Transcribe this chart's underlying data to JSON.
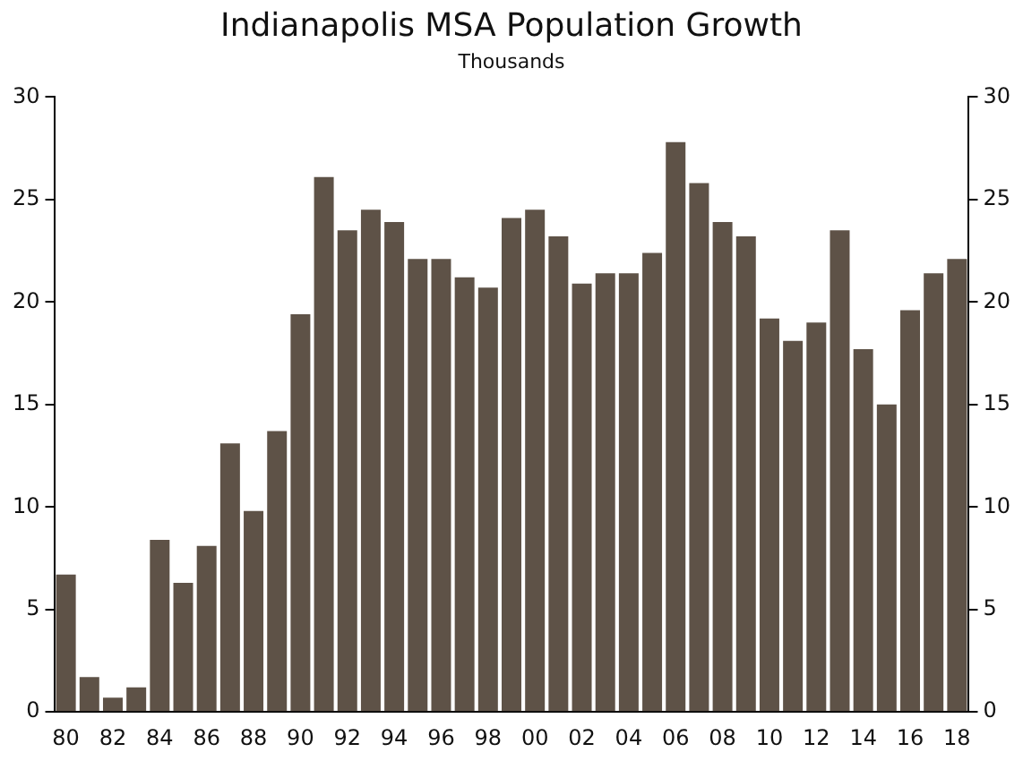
{
  "chart_data": {
    "type": "bar",
    "title": "Indianapolis MSA Population Growth",
    "subtitle": "Thousands",
    "categories": [
      "80",
      null,
      "82",
      null,
      "84",
      null,
      "86",
      null,
      "88",
      null,
      "90",
      null,
      "92",
      null,
      "94",
      null,
      "96",
      null,
      "98",
      null,
      "00",
      null,
      "02",
      null,
      "04",
      null,
      "06",
      null,
      "08",
      null,
      "10",
      null,
      "12",
      null,
      "14",
      null,
      "16",
      null,
      "18"
    ],
    "values": [
      6.7,
      1.7,
      0.7,
      1.2,
      8.4,
      6.3,
      8.1,
      13.1,
      9.8,
      13.7,
      19.4,
      26.1,
      23.5,
      24.5,
      23.9,
      22.1,
      22.1,
      21.2,
      20.7,
      24.1,
      24.5,
      23.2,
      20.9,
      21.4,
      21.4,
      22.4,
      27.8,
      25.8,
      23.9,
      23.2,
      19.2,
      18.1,
      19.0,
      23.5,
      17.7,
      15.0,
      19.6,
      21.4,
      22.1
    ],
    "color": "#5e5247",
    "ylim": [
      0,
      30
    ],
    "yticks": [
      0,
      5,
      10,
      15,
      20,
      25,
      30
    ],
    "y2lim": [
      0,
      30
    ],
    "y2ticks": [
      0,
      5,
      10,
      15,
      20,
      25,
      30
    ],
    "grid": false,
    "legend": false
  }
}
